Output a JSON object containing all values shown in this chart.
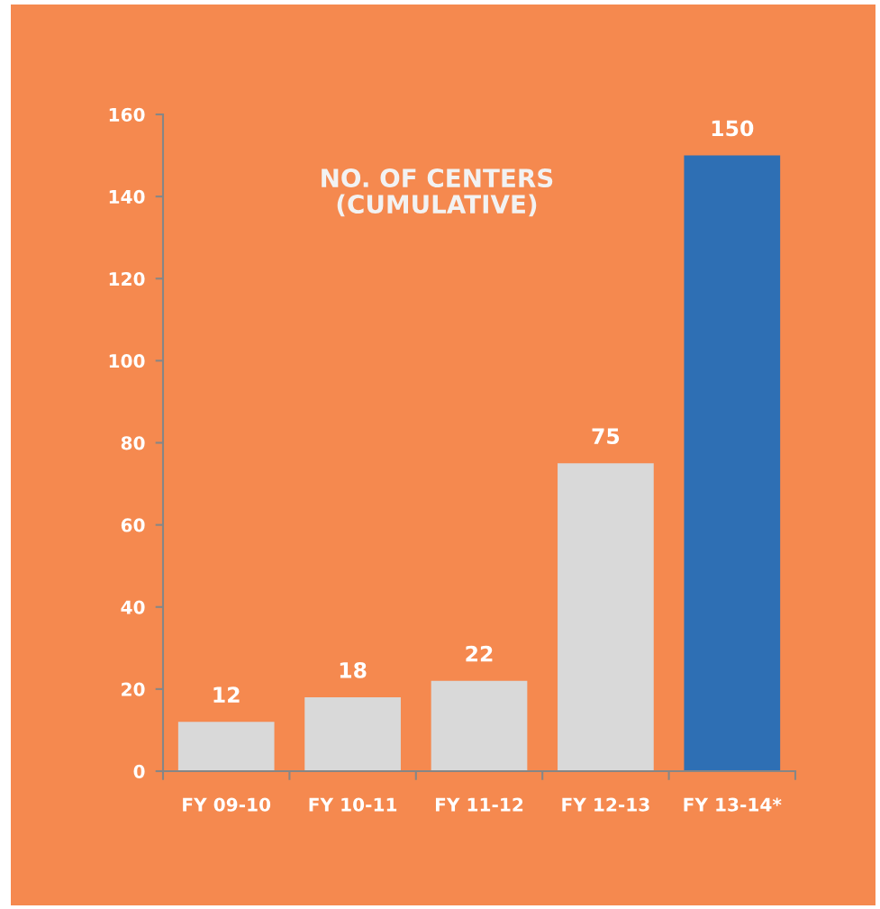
{
  "chart_data": {
    "type": "bar",
    "title": "NO. OF CENTERS\n(CUMULATIVE)",
    "categories": [
      "FY 09-10",
      "FY 10-11",
      "FY 11-12",
      "FY 12-13",
      "FY 13-14*"
    ],
    "values": [
      12,
      18,
      22,
      75,
      150
    ],
    "colors": [
      "#d9d9d9",
      "#d9d9d9",
      "#d9d9d9",
      "#d9d9d9",
      "#2e6fb4"
    ],
    "ylim": [
      0,
      160
    ],
    "yticks": [
      0,
      20,
      40,
      60,
      80,
      100,
      120,
      140,
      160
    ],
    "data_labels": true,
    "grid": false
  }
}
